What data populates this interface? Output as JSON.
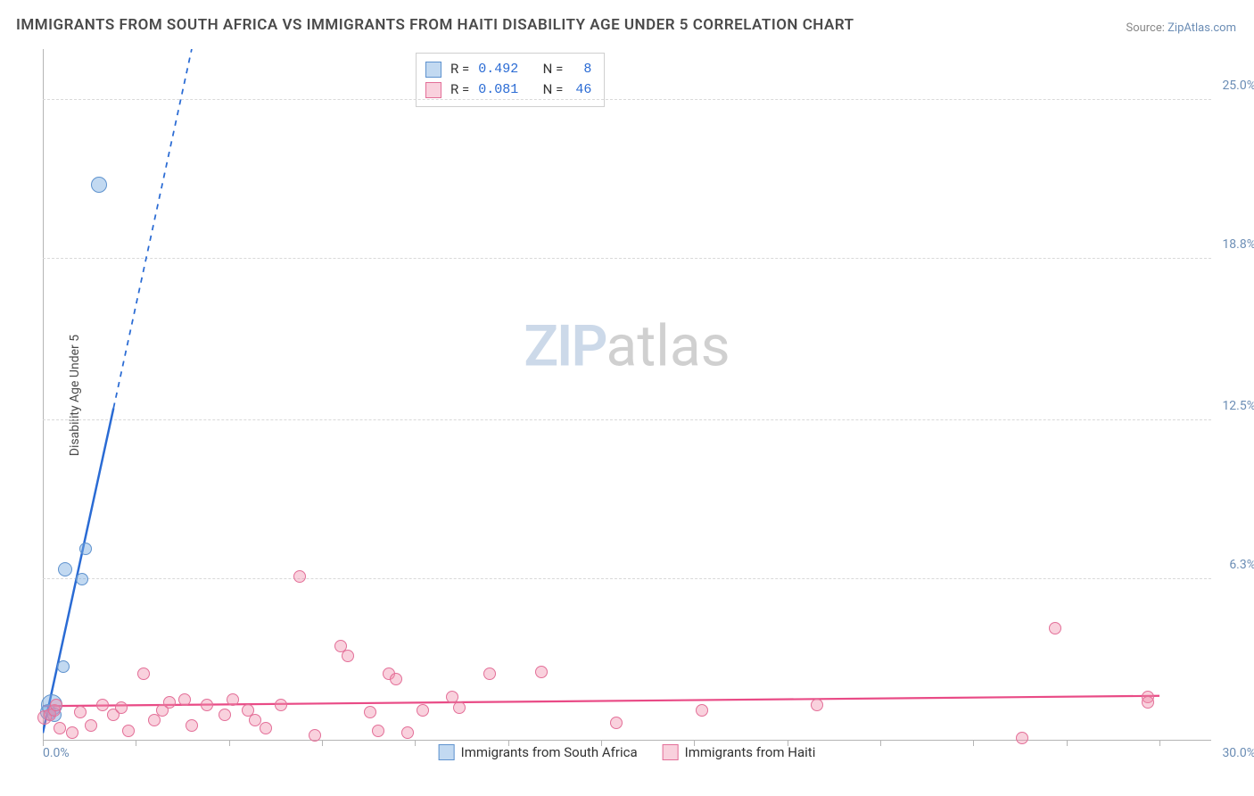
{
  "title": "IMMIGRANTS FROM SOUTH AFRICA VS IMMIGRANTS FROM HAITI DISABILITY AGE UNDER 5 CORRELATION CHART",
  "source_prefix": "Source: ",
  "source_link": "ZipAtlas.com",
  "ylabel": "Disability Age Under 5",
  "watermark_zip": "ZIP",
  "watermark_atlas": "atlas",
  "chart": {
    "type": "scatter-with-regression",
    "x": {
      "min": 0.0,
      "max": 30.0,
      "label_min": "0.0%",
      "label_max": "30.0%",
      "tick_count": 12
    },
    "y": {
      "min": 0.0,
      "max": 27.0,
      "ticks": [
        {
          "v": 6.3,
          "label": "6.3%"
        },
        {
          "v": 12.5,
          "label": "12.5%"
        },
        {
          "v": 18.8,
          "label": "18.8%"
        },
        {
          "v": 25.0,
          "label": "25.0%"
        }
      ]
    },
    "series": [
      {
        "id": "south_africa",
        "label": "Immigrants from South Africa",
        "color_fill": "rgba(120,170,225,0.45)",
        "color_stroke": "#5e92ce",
        "R": "0.492",
        "N": "8",
        "regression": {
          "from": [
            0.0,
            0.3
          ],
          "to": [
            4.0,
            27.0
          ],
          "solid_until_x": 1.9,
          "color": "#2a6bd4",
          "width": 2.5
        },
        "points": [
          {
            "x": 0.15,
            "y": 1.1,
            "r": 9
          },
          {
            "x": 0.25,
            "y": 1.4,
            "r": 12
          },
          {
            "x": 0.3,
            "y": 1.0,
            "r": 8
          },
          {
            "x": 0.55,
            "y": 2.9,
            "r": 7
          },
          {
            "x": 0.6,
            "y": 6.7,
            "r": 8
          },
          {
            "x": 1.05,
            "y": 6.3,
            "r": 7
          },
          {
            "x": 1.15,
            "y": 7.5,
            "r": 7
          },
          {
            "x": 1.5,
            "y": 21.7,
            "r": 9
          }
        ]
      },
      {
        "id": "haiti",
        "label": "Immigrants from Haiti",
        "color_fill": "rgba(240,140,170,0.40)",
        "color_stroke": "#e36f98",
        "R": "0.081",
        "N": "46",
        "regression": {
          "from": [
            0.0,
            1.35
          ],
          "to": [
            30.0,
            1.75
          ],
          "solid_until_x": 30.0,
          "color": "#e94b86",
          "width": 2.2
        },
        "points": [
          {
            "x": 0.05,
            "y": 0.9,
            "r": 8
          },
          {
            "x": 0.2,
            "y": 1.0,
            "r": 7
          },
          {
            "x": 0.3,
            "y": 1.2,
            "r": 7
          },
          {
            "x": 0.35,
            "y": 1.4,
            "r": 7
          },
          {
            "x": 0.45,
            "y": 0.5,
            "r": 7
          },
          {
            "x": 0.8,
            "y": 0.3,
            "r": 7
          },
          {
            "x": 1.0,
            "y": 1.1,
            "r": 7
          },
          {
            "x": 1.3,
            "y": 0.6,
            "r": 7
          },
          {
            "x": 1.6,
            "y": 1.4,
            "r": 7
          },
          {
            "x": 1.9,
            "y": 1.0,
            "r": 7
          },
          {
            "x": 2.1,
            "y": 1.3,
            "r": 7
          },
          {
            "x": 2.3,
            "y": 0.4,
            "r": 7
          },
          {
            "x": 2.7,
            "y": 2.6,
            "r": 7
          },
          {
            "x": 3.0,
            "y": 0.8,
            "r": 7
          },
          {
            "x": 3.2,
            "y": 1.2,
            "r": 7
          },
          {
            "x": 3.4,
            "y": 1.5,
            "r": 7
          },
          {
            "x": 3.8,
            "y": 1.6,
            "r": 7
          },
          {
            "x": 4.0,
            "y": 0.6,
            "r": 7
          },
          {
            "x": 4.4,
            "y": 1.4,
            "r": 7
          },
          {
            "x": 4.9,
            "y": 1.0,
            "r": 7
          },
          {
            "x": 5.1,
            "y": 1.6,
            "r": 7
          },
          {
            "x": 5.5,
            "y": 1.2,
            "r": 7
          },
          {
            "x": 5.7,
            "y": 0.8,
            "r": 7
          },
          {
            "x": 6.0,
            "y": 0.5,
            "r": 7
          },
          {
            "x": 6.4,
            "y": 1.4,
            "r": 7
          },
          {
            "x": 6.9,
            "y": 6.4,
            "r": 7
          },
          {
            "x": 7.3,
            "y": 0.2,
            "r": 7
          },
          {
            "x": 8.0,
            "y": 3.7,
            "r": 7
          },
          {
            "x": 8.2,
            "y": 3.3,
            "r": 7
          },
          {
            "x": 8.8,
            "y": 1.1,
            "r": 7
          },
          {
            "x": 9.0,
            "y": 0.4,
            "r": 7
          },
          {
            "x": 9.3,
            "y": 2.6,
            "r": 7
          },
          {
            "x": 9.5,
            "y": 2.4,
            "r": 7
          },
          {
            "x": 9.8,
            "y": 0.3,
            "r": 7
          },
          {
            "x": 10.2,
            "y": 1.2,
            "r": 7
          },
          {
            "x": 11.0,
            "y": 1.7,
            "r": 7
          },
          {
            "x": 11.2,
            "y": 1.3,
            "r": 7
          },
          {
            "x": 12.0,
            "y": 2.6,
            "r": 7
          },
          {
            "x": 13.4,
            "y": 2.7,
            "r": 7
          },
          {
            "x": 15.4,
            "y": 0.7,
            "r": 7
          },
          {
            "x": 17.7,
            "y": 1.2,
            "r": 7
          },
          {
            "x": 20.8,
            "y": 1.4,
            "r": 7
          },
          {
            "x": 26.3,
            "y": 0.1,
            "r": 7
          },
          {
            "x": 27.2,
            "y": 4.4,
            "r": 7
          },
          {
            "x": 29.7,
            "y": 1.7,
            "r": 7
          },
          {
            "x": 29.7,
            "y": 1.5,
            "r": 7
          }
        ]
      }
    ]
  }
}
